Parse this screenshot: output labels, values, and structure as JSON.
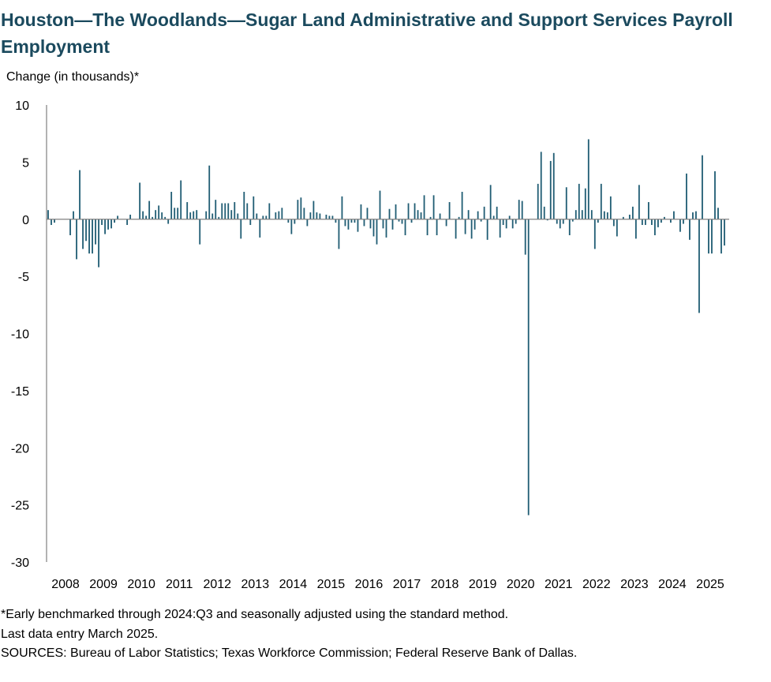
{
  "chart_data": {
    "type": "bar",
    "title": "Houston—The Woodlands—Sugar Land Administrative and Support Services Payroll Employment",
    "ylabel": "Change (in thousands)*",
    "xlabel": "",
    "ylim": [
      -30,
      10
    ],
    "yticks": [
      10,
      5,
      0,
      -5,
      -10,
      -15,
      -20,
      -25,
      -30
    ],
    "ytick_labels": [
      "10",
      "5",
      "0",
      "-5",
      "-10",
      "-15",
      "-20",
      "-25",
      "-30"
    ],
    "xtick_labels": [
      "2008",
      "2009",
      "2010",
      "2011",
      "2012",
      "2013",
      "2014",
      "2015",
      "2016",
      "2017",
      "2018",
      "2019",
      "2020",
      "2021",
      "2022",
      "2023",
      "2024",
      "2025"
    ],
    "start": "2008-01",
    "end": "2025-03",
    "bar_color": "#1f5c73",
    "axis_color": "#808080",
    "values": [
      0.8,
      -0.5,
      -0.3,
      0.0,
      0.0,
      0.0,
      0.0,
      -1.4,
      0.7,
      -3.5,
      4.3,
      -2.6,
      -1.9,
      -3.0,
      -3.0,
      -2.2,
      -4.2,
      -0.5,
      -1.3,
      -0.9,
      -0.8,
      -0.3,
      0.3,
      0.0,
      0.0,
      -0.5,
      0.4,
      0.0,
      0.0,
      3.2,
      0.7,
      0.3,
      1.6,
      0.2,
      0.8,
      1.2,
      0.6,
      0.2,
      -0.4,
      2.4,
      1.0,
      1.0,
      3.4,
      0.0,
      1.5,
      0.6,
      0.7,
      0.8,
      -2.2,
      0.0,
      0.7,
      4.7,
      0.5,
      1.7,
      0.2,
      1.4,
      1.4,
      1.4,
      0.8,
      1.5,
      0.5,
      -1.7,
      2.4,
      1.4,
      -0.5,
      2.0,
      0.5,
      -1.6,
      0.3,
      0.3,
      1.4,
      0.0,
      0.6,
      0.7,
      1.0,
      0.0,
      -0.3,
      -1.3,
      -0.4,
      1.7,
      1.9,
      1.0,
      -0.6,
      0.6,
      1.6,
      0.6,
      0.5,
      0.0,
      0.4,
      0.3,
      0.3,
      -0.3,
      -2.6,
      2.0,
      -0.6,
      -0.9,
      -0.3,
      -0.3,
      -1.1,
      1.3,
      -0.6,
      1.0,
      -0.8,
      -1.5,
      -2.2,
      2.5,
      -0.8,
      -1.6,
      0.9,
      -0.9,
      1.3,
      -0.2,
      -0.4,
      -1.4,
      1.4,
      -0.3,
      1.4,
      0.8,
      0.6,
      2.1,
      -1.4,
      0.2,
      2.1,
      -1.4,
      0.5,
      0.0,
      -0.6,
      1.5,
      0.0,
      -1.7,
      0.2,
      2.4,
      -1.3,
      0.8,
      -1.7,
      -0.9,
      0.7,
      -0.2,
      1.1,
      -1.8,
      3.0,
      0.3,
      1.1,
      -1.6,
      -0.5,
      -0.8,
      0.3,
      -0.8,
      -0.4,
      1.7,
      1.6,
      -3.1,
      -25.9,
      0.0,
      0.0,
      3.1,
      5.9,
      1.1,
      -0.1,
      5.1,
      5.8,
      -0.4,
      -0.8,
      -0.4,
      2.8,
      -1.4,
      -0.2,
      0.8,
      3.1,
      0.8,
      2.7,
      7.0,
      0.8,
      -2.6,
      -0.3,
      3.1,
      0.7,
      0.6,
      2.0,
      -0.6,
      -1.5,
      0.0,
      0.2,
      0.0,
      0.4,
      1.1,
      -1.7,
      3.0,
      -0.5,
      -0.5,
      1.5,
      -0.5,
      -1.4,
      -0.7,
      -0.3,
      0.2,
      0.0,
      -0.3,
      0.7,
      0.0,
      -1.1,
      -0.4,
      4.0,
      -1.8,
      0.6,
      0.7,
      -8.2,
      5.6,
      0.0,
      -3.0,
      -3.0,
      4.2,
      1.0,
      -3.0,
      -2.3
    ]
  },
  "footnotes": {
    "note": "*Early benchmarked through 2024:Q3 and seasonally adjusted using the standard method.",
    "last_entry": "Last data entry March 2025.",
    "sources": "SOURCES: Bureau of Labor Statistics; Texas Workforce Commission; Federal Reserve Bank of Dallas."
  }
}
